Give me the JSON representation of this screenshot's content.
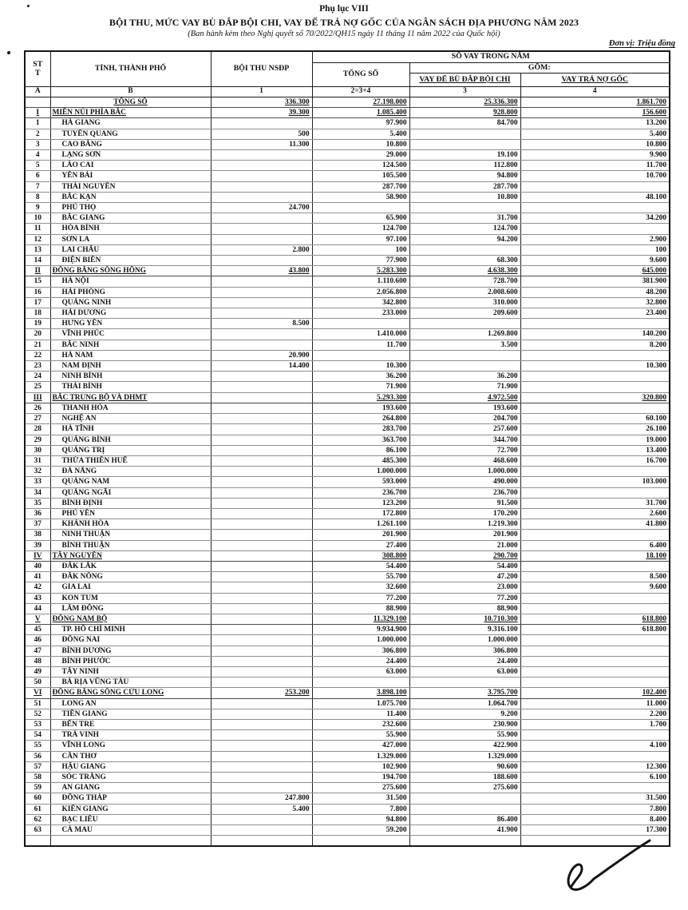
{
  "page": {
    "appendix_label": "Phụ lục VIII",
    "title": "BỘI THU, MỨC VAY BÙ ĐẮP BỘI CHI, VAY ĐỂ TRẢ NỢ GỐC CỦA NGÂN SÁCH ĐỊA PHƯƠNG NĂM 2023",
    "issuance_note": "(Ban hành kèm theo Nghị quyết số 70/2022/QH15 ngày 11 tháng 11 năm 2022 của Quốc hội)",
    "unit_label": "Đơn vị: Triệu đồng"
  },
  "table": {
    "headers": {
      "stt_line1": "ST",
      "stt_line2": "T",
      "province": "TỈNH, THÀNH PHỐ",
      "boi_thu_nsdp": "BỘI THU NSĐP",
      "so_vay_trong_nam": "SỐ VAY TRONG NĂM",
      "tong_so": "TỔNG SỐ",
      "gom": "GỒM:",
      "vay_bu_dap_boi_chi": "VAY ĐỂ BÙ ĐẮP BỘI CHI",
      "vay_tra_no_goc": "VAY TRẢ NỢ GỐC"
    },
    "index_row": [
      "A",
      "B",
      "1",
      "2=3+4",
      "3",
      "4"
    ],
    "columns": [
      "stt",
      "tinh_thanh_pho",
      "boi_thu_nsdp",
      "tong_so",
      "vay_de_bu_dap_boi_chi",
      "vay_tra_no_goc"
    ],
    "rows": [
      {
        "type": "total",
        "cells": [
          "",
          "TỔNG SỐ",
          "336.300",
          "27.198.000",
          "25.336.300",
          "1.861.700"
        ]
      },
      {
        "type": "region",
        "cells": [
          "I",
          "MIỀN NÚI PHÍA BẮC",
          "39.300",
          "1.085.400",
          "928.800",
          "156.600"
        ]
      },
      {
        "type": "province",
        "cells": [
          "1",
          "HÀ GIANG",
          "",
          "97.900",
          "84.700",
          "13.200"
        ]
      },
      {
        "type": "province",
        "cells": [
          "2",
          "TUYÊN QUANG",
          "500",
          "5.400",
          "",
          "5.400"
        ]
      },
      {
        "type": "province",
        "cells": [
          "3",
          "CAO BẰNG",
          "11.300",
          "10.800",
          "",
          "10.800"
        ]
      },
      {
        "type": "province",
        "cells": [
          "4",
          "LẠNG SƠN",
          "",
          "29.000",
          "19.100",
          "9.900"
        ]
      },
      {
        "type": "province",
        "cells": [
          "5",
          "LÀO CAI",
          "",
          "124.500",
          "112.800",
          "11.700"
        ]
      },
      {
        "type": "province",
        "cells": [
          "6",
          "YÊN BÁI",
          "",
          "105.500",
          "94.800",
          "10.700"
        ]
      },
      {
        "type": "province",
        "cells": [
          "7",
          "THÁI NGUYÊN",
          "",
          "287.700",
          "287.700",
          ""
        ]
      },
      {
        "type": "province",
        "cells": [
          "8",
          "BẮC KẠN",
          "",
          "58.900",
          "10.800",
          "48.100"
        ]
      },
      {
        "type": "province",
        "cells": [
          "9",
          "PHÚ THỌ",
          "24.700",
          "",
          "",
          ""
        ]
      },
      {
        "type": "province",
        "cells": [
          "10",
          "BẮC GIANG",
          "",
          "65.900",
          "31.700",
          "34.200"
        ]
      },
      {
        "type": "province",
        "cells": [
          "11",
          "HÒA BÌNH",
          "",
          "124.700",
          "124.700",
          ""
        ]
      },
      {
        "type": "province",
        "cells": [
          "12",
          "SƠN LA",
          "",
          "97.100",
          "94.200",
          "2.900"
        ]
      },
      {
        "type": "province",
        "cells": [
          "13",
          "LAI CHÂU",
          "2.800",
          "100",
          "",
          "100"
        ]
      },
      {
        "type": "province",
        "cells": [
          "14",
          "ĐIỆN BIÊN",
          "",
          "77.900",
          "68.300",
          "9.600"
        ]
      },
      {
        "type": "region",
        "cells": [
          "II",
          "ĐỒNG BẰNG SÔNG HỒNG",
          "43.800",
          "5.283.300",
          "4.638.300",
          "645.000"
        ]
      },
      {
        "type": "province",
        "cells": [
          "15",
          "HÀ NỘI",
          "",
          "1.110.600",
          "728.700",
          "381.900"
        ]
      },
      {
        "type": "province",
        "cells": [
          "16",
          "HẢI PHÒNG",
          "",
          "2.056.800",
          "2.008.600",
          "48.200"
        ]
      },
      {
        "type": "province",
        "cells": [
          "17",
          "QUẢNG NINH",
          "",
          "342.800",
          "310.000",
          "32.800"
        ]
      },
      {
        "type": "province",
        "cells": [
          "18",
          "HẢI DƯƠNG",
          "",
          "233.000",
          "209.600",
          "23.400"
        ]
      },
      {
        "type": "province",
        "cells": [
          "19",
          "HƯNG YÊN",
          "8.500",
          "",
          "",
          ""
        ]
      },
      {
        "type": "province",
        "cells": [
          "20",
          "VĨNH PHÚC",
          "",
          "1.410.000",
          "1.269.800",
          "140.200"
        ]
      },
      {
        "type": "province",
        "cells": [
          "21",
          "BẮC NINH",
          "",
          "11.700",
          "3.500",
          "8.200"
        ]
      },
      {
        "type": "province",
        "cells": [
          "22",
          "HÀ NAM",
          "20.900",
          "",
          "",
          ""
        ]
      },
      {
        "type": "province",
        "cells": [
          "23",
          "NAM ĐỊNH",
          "14.400",
          "10.300",
          "",
          "10.300"
        ]
      },
      {
        "type": "province",
        "cells": [
          "24",
          "NINH BÌNH",
          "",
          "36.200",
          "36.200",
          ""
        ]
      },
      {
        "type": "province",
        "cells": [
          "25",
          "THÁI BÌNH",
          "",
          "71.900",
          "71.900",
          ""
        ]
      },
      {
        "type": "region",
        "cells": [
          "III",
          "BẮC TRUNG BỘ VÀ DHMT",
          "",
          "5.293.300",
          "4.972.500",
          "320.800"
        ]
      },
      {
        "type": "province",
        "cells": [
          "26",
          "THANH HÓA",
          "",
          "193.600",
          "193.600",
          ""
        ]
      },
      {
        "type": "province",
        "cells": [
          "27",
          "NGHỆ AN",
          "",
          "264.800",
          "204.700",
          "60.100"
        ]
      },
      {
        "type": "province",
        "cells": [
          "28",
          "HÀ TĨNH",
          "",
          "283.700",
          "257.600",
          "26.100"
        ]
      },
      {
        "type": "province",
        "cells": [
          "29",
          "QUẢNG BÌNH",
          "",
          "363.700",
          "344.700",
          "19.000"
        ]
      },
      {
        "type": "province",
        "cells": [
          "30",
          "QUẢNG TRỊ",
          "",
          "86.100",
          "72.700",
          "13.400"
        ]
      },
      {
        "type": "province",
        "cells": [
          "31",
          "THỪA THIÊN HUẾ",
          "",
          "485.300",
          "468.600",
          "16.700"
        ]
      },
      {
        "type": "province",
        "cells": [
          "32",
          "ĐÀ NẴNG",
          "",
          "1.000.000",
          "1.000.000",
          ""
        ]
      },
      {
        "type": "province",
        "cells": [
          "33",
          "QUẢNG NAM",
          "",
          "593.000",
          "490.000",
          "103.000"
        ]
      },
      {
        "type": "province",
        "cells": [
          "34",
          "QUẢNG NGÃI",
          "",
          "236.700",
          "236.700",
          ""
        ]
      },
      {
        "type": "province",
        "cells": [
          "35",
          "BÌNH ĐỊNH",
          "",
          "123.200",
          "91.500",
          "31.700"
        ]
      },
      {
        "type": "province",
        "cells": [
          "36",
          "PHÚ YÊN",
          "",
          "172.800",
          "170.200",
          "2.600"
        ]
      },
      {
        "type": "province",
        "cells": [
          "37",
          "KHÁNH HÒA",
          "",
          "1.261.100",
          "1.219.300",
          "41.800"
        ]
      },
      {
        "type": "province",
        "cells": [
          "38",
          "NINH THUẬN",
          "",
          "201.900",
          "201.900",
          ""
        ]
      },
      {
        "type": "province",
        "cells": [
          "39",
          "BÌNH THUẬN",
          "",
          "27.400",
          "21.000",
          "6.400"
        ]
      },
      {
        "type": "region",
        "cells": [
          "IV",
          "TÂY NGUYÊN",
          "",
          "308.800",
          "290.700",
          "18.100"
        ]
      },
      {
        "type": "province",
        "cells": [
          "40",
          "ĐẮK LẮK",
          "",
          "54.400",
          "54.400",
          ""
        ]
      },
      {
        "type": "province",
        "cells": [
          "41",
          "ĐẮK NÔNG",
          "",
          "55.700",
          "47.200",
          "8.500"
        ]
      },
      {
        "type": "province",
        "cells": [
          "42",
          "GIA LAI",
          "",
          "32.600",
          "23.000",
          "9.600"
        ]
      },
      {
        "type": "province",
        "cells": [
          "43",
          "KON TUM",
          "",
          "77.200",
          "77.200",
          ""
        ]
      },
      {
        "type": "province",
        "cells": [
          "44",
          "LÂM ĐỒNG",
          "",
          "88.900",
          "88.900",
          ""
        ]
      },
      {
        "type": "region",
        "cells": [
          "V",
          "ĐÔNG NAM BỘ",
          "",
          "11.329.100",
          "10.710.300",
          "618.800"
        ]
      },
      {
        "type": "province",
        "cells": [
          "45",
          "TP. HỒ CHÍ MINH",
          "",
          "9.934.900",
          "9.316.100",
          "618.800"
        ]
      },
      {
        "type": "province",
        "cells": [
          "46",
          "ĐỒNG NAI",
          "",
          "1.000.000",
          "1.000.000",
          ""
        ]
      },
      {
        "type": "province",
        "cells": [
          "47",
          "BÌNH DƯƠNG",
          "",
          "306.800",
          "306.800",
          ""
        ]
      },
      {
        "type": "province",
        "cells": [
          "48",
          "BÌNH PHƯỚC",
          "",
          "24.400",
          "24.400",
          ""
        ]
      },
      {
        "type": "province",
        "cells": [
          "49",
          "TÂY NINH",
          "",
          "63.000",
          "63.000",
          ""
        ]
      },
      {
        "type": "province",
        "cells": [
          "50",
          "BÀ RỊA VŨNG TÀU",
          "",
          "",
          "",
          ""
        ]
      },
      {
        "type": "region",
        "cells": [
          "VI",
          "ĐỒNG BẰNG SÔNG CỬU LONG",
          "253.200",
          "3.898.100",
          "3.795.700",
          "102.400"
        ]
      },
      {
        "type": "province",
        "cells": [
          "51",
          "LONG AN",
          "",
          "1.075.700",
          "1.064.700",
          "11.000"
        ]
      },
      {
        "type": "province",
        "cells": [
          "52",
          "TIỀN GIANG",
          "",
          "11.400",
          "9.200",
          "2.200"
        ]
      },
      {
        "type": "province",
        "cells": [
          "53",
          "BẾN TRE",
          "",
          "232.600",
          "230.900",
          "1.700"
        ]
      },
      {
        "type": "province",
        "cells": [
          "54",
          "TRÀ VINH",
          "",
          "55.900",
          "55.900",
          ""
        ]
      },
      {
        "type": "province",
        "cells": [
          "55",
          "VĨNH LONG",
          "",
          "427.000",
          "422.900",
          "4.100"
        ]
      },
      {
        "type": "province",
        "cells": [
          "56",
          "CẦN THƠ",
          "",
          "1.329.000",
          "1.329.000",
          ""
        ]
      },
      {
        "type": "province",
        "cells": [
          "57",
          "HẬU GIANG",
          "",
          "102.900",
          "90.600",
          "12.300"
        ]
      },
      {
        "type": "province",
        "cells": [
          "58",
          "SÓC TRĂNG",
          "",
          "194.700",
          "188.600",
          "6.100"
        ]
      },
      {
        "type": "province",
        "cells": [
          "59",
          "AN GIANG",
          "",
          "275.600",
          "275.600",
          ""
        ]
      },
      {
        "type": "province",
        "cells": [
          "60",
          "ĐỒNG THÁP",
          "247.800",
          "31.500",
          "",
          "31.500"
        ]
      },
      {
        "type": "province",
        "cells": [
          "61",
          "KIÊN GIANG",
          "5.400",
          "7.800",
          "",
          "7.800"
        ]
      },
      {
        "type": "province",
        "cells": [
          "62",
          "BẠC LIÊU",
          "",
          "94.800",
          "86.400",
          "8.400"
        ]
      },
      {
        "type": "province",
        "cells": [
          "63",
          "CÀ MAU",
          "",
          "59.200",
          "41.900",
          "17.300"
        ]
      },
      {
        "type": "empty",
        "cells": [
          "",
          "",
          "",
          "",
          "",
          ""
        ]
      }
    ]
  }
}
